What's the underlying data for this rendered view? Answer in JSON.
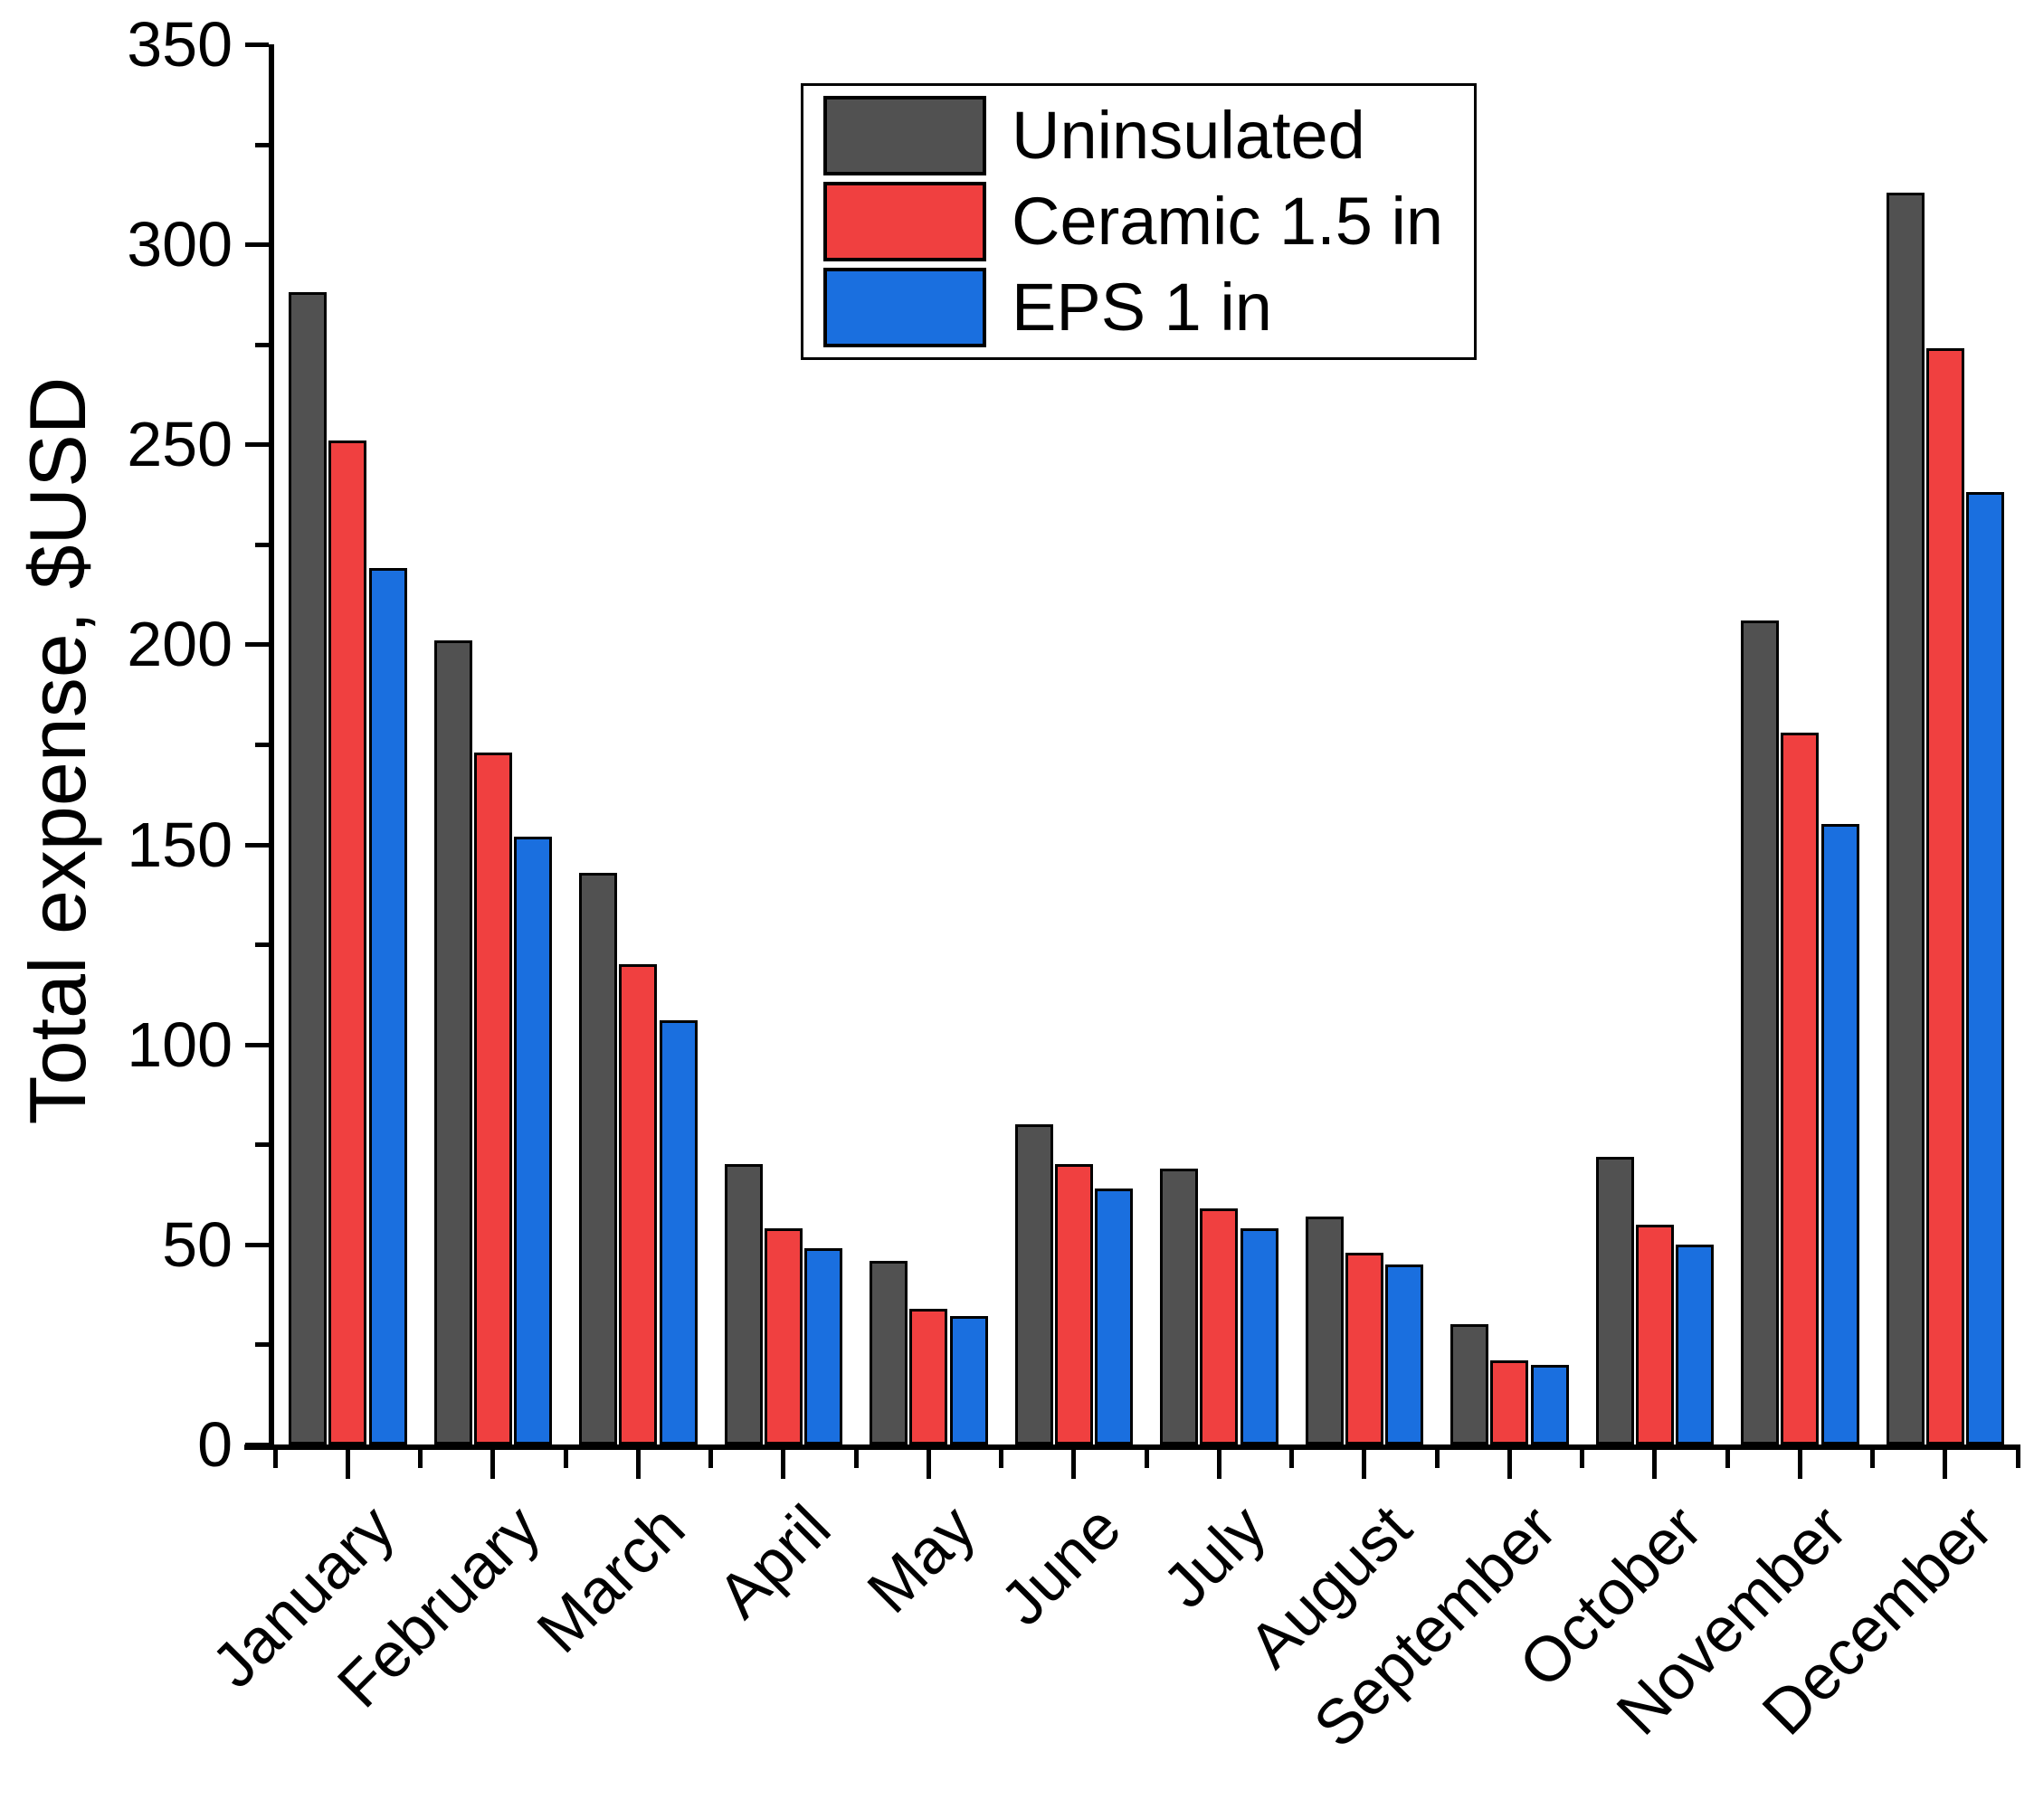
{
  "chart_data": {
    "type": "bar",
    "title": "",
    "xlabel": "",
    "ylabel": "Total expense, $USD",
    "ylim": [
      0,
      350
    ],
    "yticks_major": [
      0,
      50,
      100,
      150,
      200,
      250,
      300,
      350
    ],
    "ytick_minor_step": 25,
    "grid": false,
    "legend_position": "top-center",
    "bar_outline_color": "#000000",
    "axis_color": "#000000",
    "background_color": "#ffffff",
    "categories": [
      "January",
      "February",
      "March",
      "April",
      "May",
      "June",
      "July",
      "August",
      "September",
      "October",
      "November",
      "December"
    ],
    "series": [
      {
        "name": "Uninsulated",
        "color": "#515151",
        "values": [
          288,
          201,
          143,
          70,
          46,
          80,
          69,
          57,
          30,
          72,
          206,
          313
        ]
      },
      {
        "name": "Ceramic 1.5 in",
        "color": "#F04040",
        "values": [
          251,
          173,
          120,
          54,
          34,
          70,
          59,
          48,
          21,
          55,
          178,
          274
        ]
      },
      {
        "name": "EPS 1 in",
        "color": "#1A6FDF",
        "values": [
          219,
          152,
          106,
          49,
          32,
          64,
          54,
          45,
          20,
          50,
          155,
          238
        ]
      }
    ]
  }
}
